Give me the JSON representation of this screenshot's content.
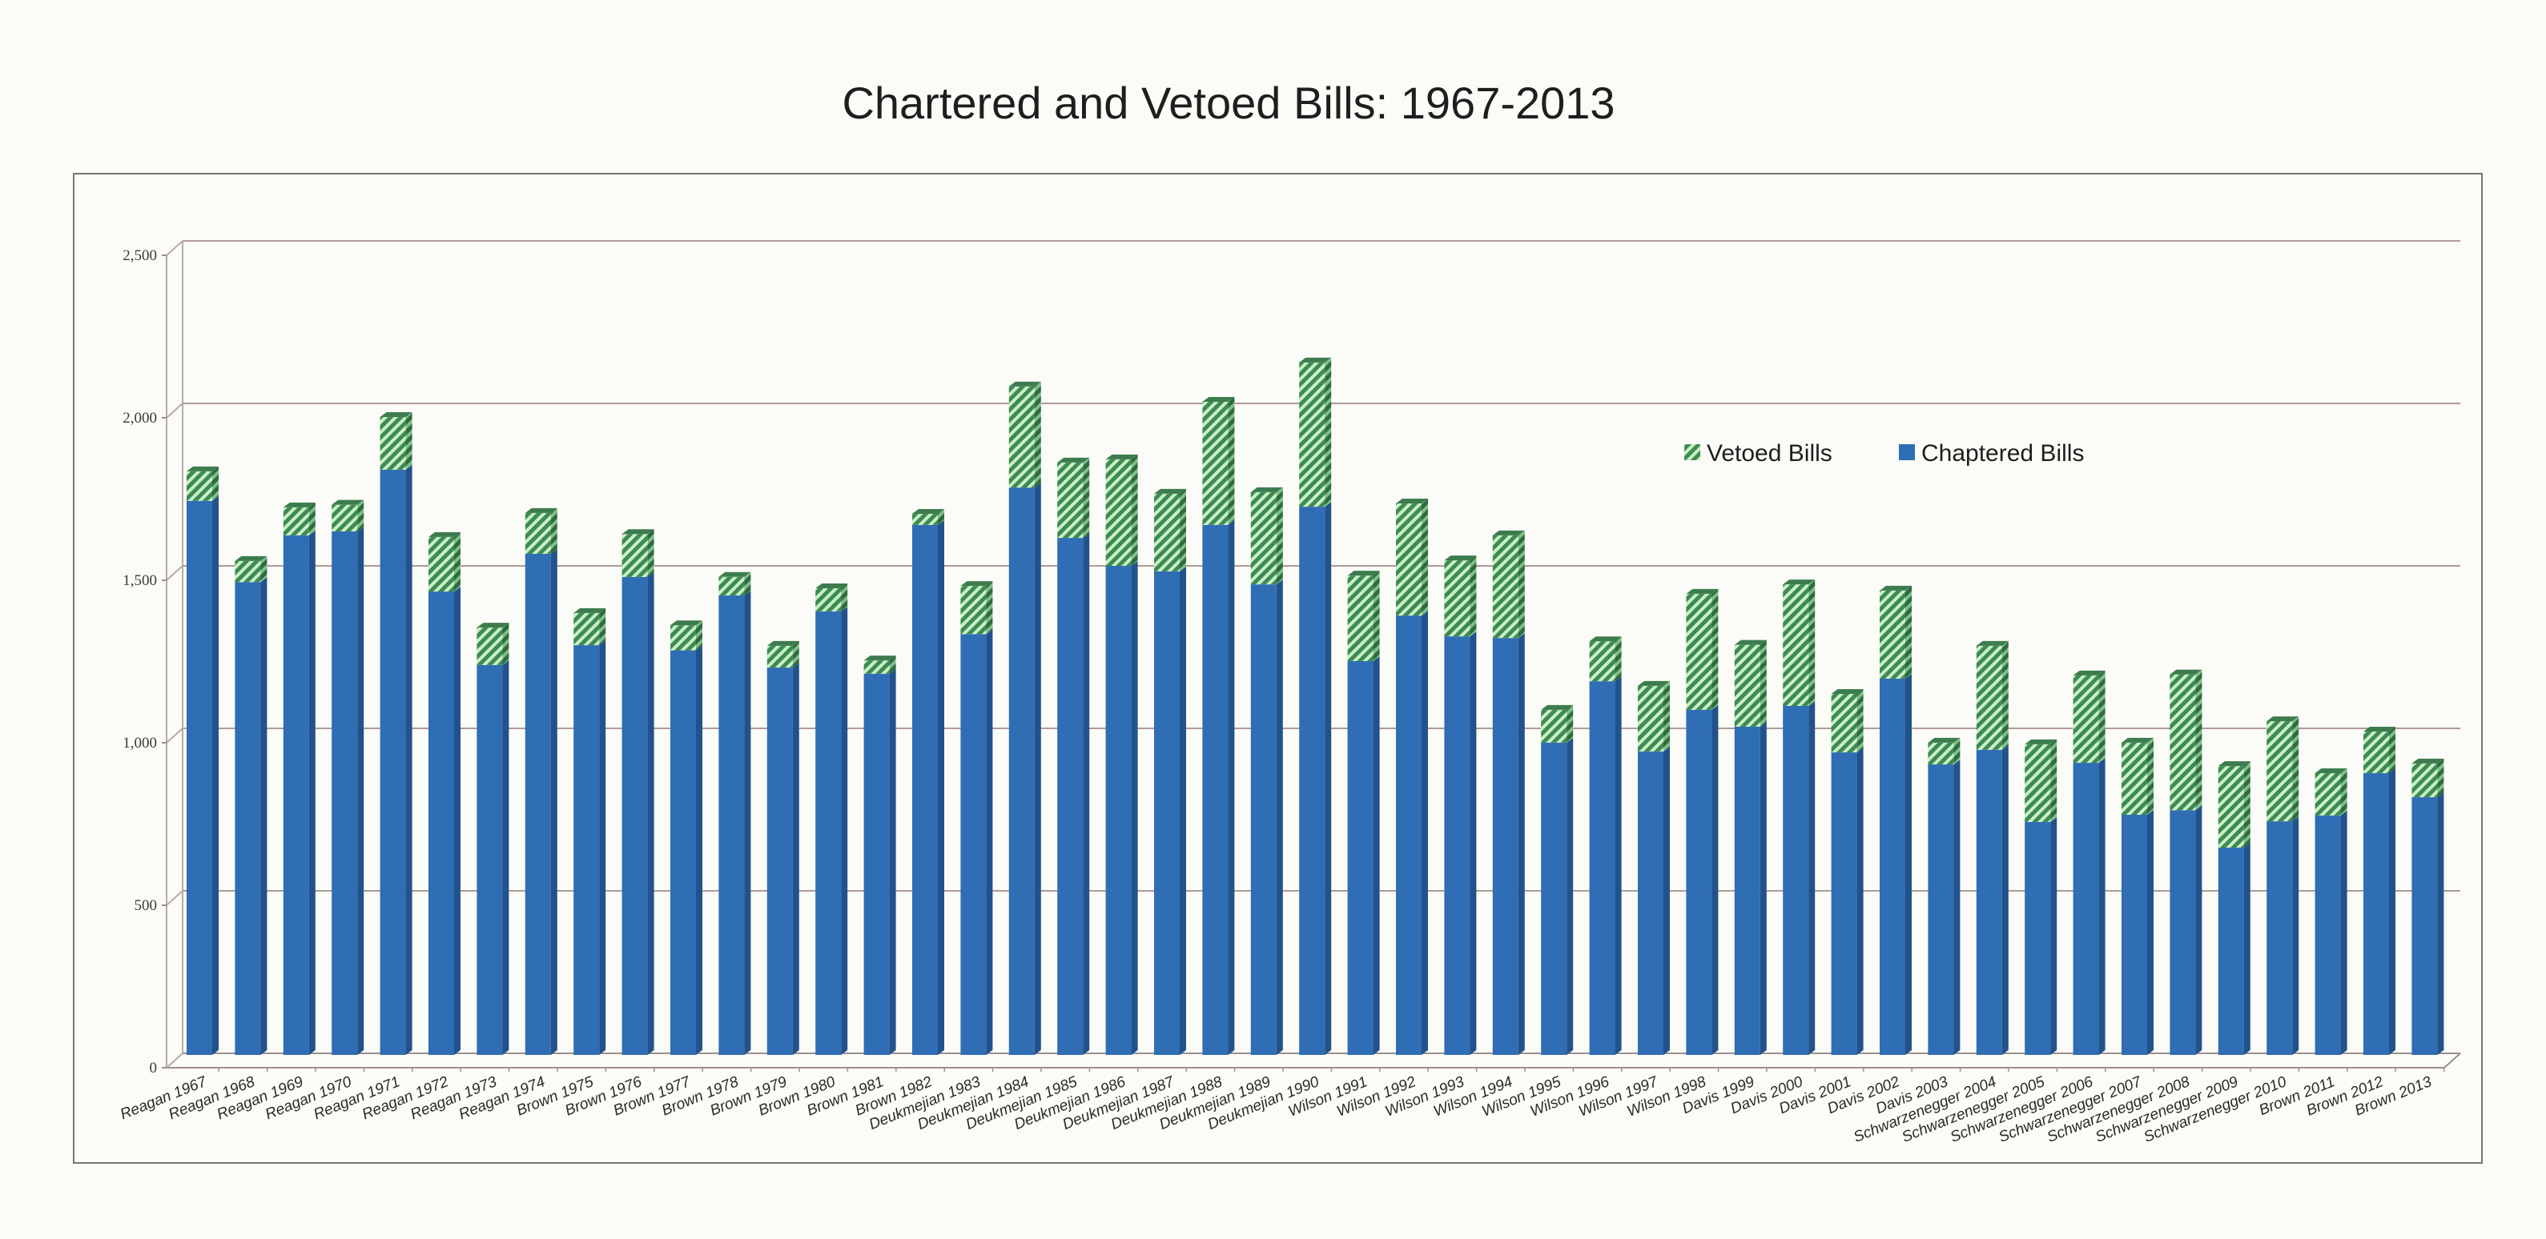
{
  "chart_data": {
    "type": "bar",
    "stacked": true,
    "title": "Chartered and Vetoed Bills: 1967-2013",
    "xlabel": "",
    "ylabel": "",
    "ylim": [
      0,
      2500
    ],
    "yticks": [
      0,
      500,
      1000,
      1500,
      2000,
      2500
    ],
    "ytick_labels": [
      "0",
      "500",
      "1,000",
      "1,500",
      "2,000",
      "2,500"
    ],
    "grid": true,
    "legend_position": "top-right",
    "categories": [
      "Reagan 1967",
      "Reagan 1968",
      "Reagan 1969",
      "Reagan 1970",
      "Reagan 1971",
      "Reagan 1972",
      "Reagan 1973",
      "Reagan 1974",
      "Brown 1975",
      "Brown 1976",
      "Brown 1977",
      "Brown 1978",
      "Brown 1979",
      "Brown 1980",
      "Brown 1981",
      "Brown 1982",
      "Deukmejian 1983",
      "Deukmejian 1984",
      "Deukmejian 1985",
      "Deukmejian 1986",
      "Deukmejian 1987",
      "Deukmejian 1988",
      "Deukmejian 1989",
      "Deukmejian 1990",
      "Wilson 1991",
      "Wilson 1992",
      "Wilson 1993",
      "Wilson 1994",
      "Wilson 1995",
      "Wilson 1996",
      "Wilson 1997",
      "Wilson 1998",
      "Davis 1999",
      "Davis 2000",
      "Davis 2001",
      "Davis 2002",
      "Davis 2003",
      "Schwarzenegger 2004",
      "Schwarzenegger 2005",
      "Schwarzenegger 2006",
      "Schwarzenegger 2007",
      "Schwarzenegger 2008",
      "Schwarzenegger 2009",
      "Schwarzenegger 2010",
      "Brown 2011",
      "Brown 2012",
      "Brown 2013"
    ],
    "series": [
      {
        "name": "Chaptered Bills",
        "color": "#2f6db5",
        "values": [
          1700,
          1450,
          1594,
          1606,
          1796,
          1421,
          1195,
          1537,
          1256,
          1466,
          1240,
          1409,
          1187,
          1360,
          1168,
          1626,
          1290,
          1741,
          1586,
          1500,
          1483,
          1626,
          1443,
          1682,
          1207,
          1347,
          1283,
          1278,
          956,
          1145,
          929,
          1057,
          1005,
          1069,
          926,
          1153,
          889,
          934,
          712,
          894,
          734,
          748,
          633,
          714,
          732,
          862,
          788
        ]
      },
      {
        "name": "Vetoed Bills",
        "color": "#4f9a62",
        "values": [
          91,
          65,
          86,
          82,
          162,
          168,
          115,
          126,
          99,
          132,
          77,
          57,
          67,
          71,
          41,
          34,
          148,
          311,
          232,
          328,
          239,
          379,
          284,
          444,
          263,
          345,
          234,
          316,
          101,
          123,
          202,
          357,
          252,
          374,
          180,
          271,
          67,
          320,
          239,
          269,
          222,
          418,
          251,
          308,
          130,
          128,
          104
        ]
      }
    ],
    "legend": [
      "Vetoed Bills",
      "Chaptered Bills"
    ]
  }
}
